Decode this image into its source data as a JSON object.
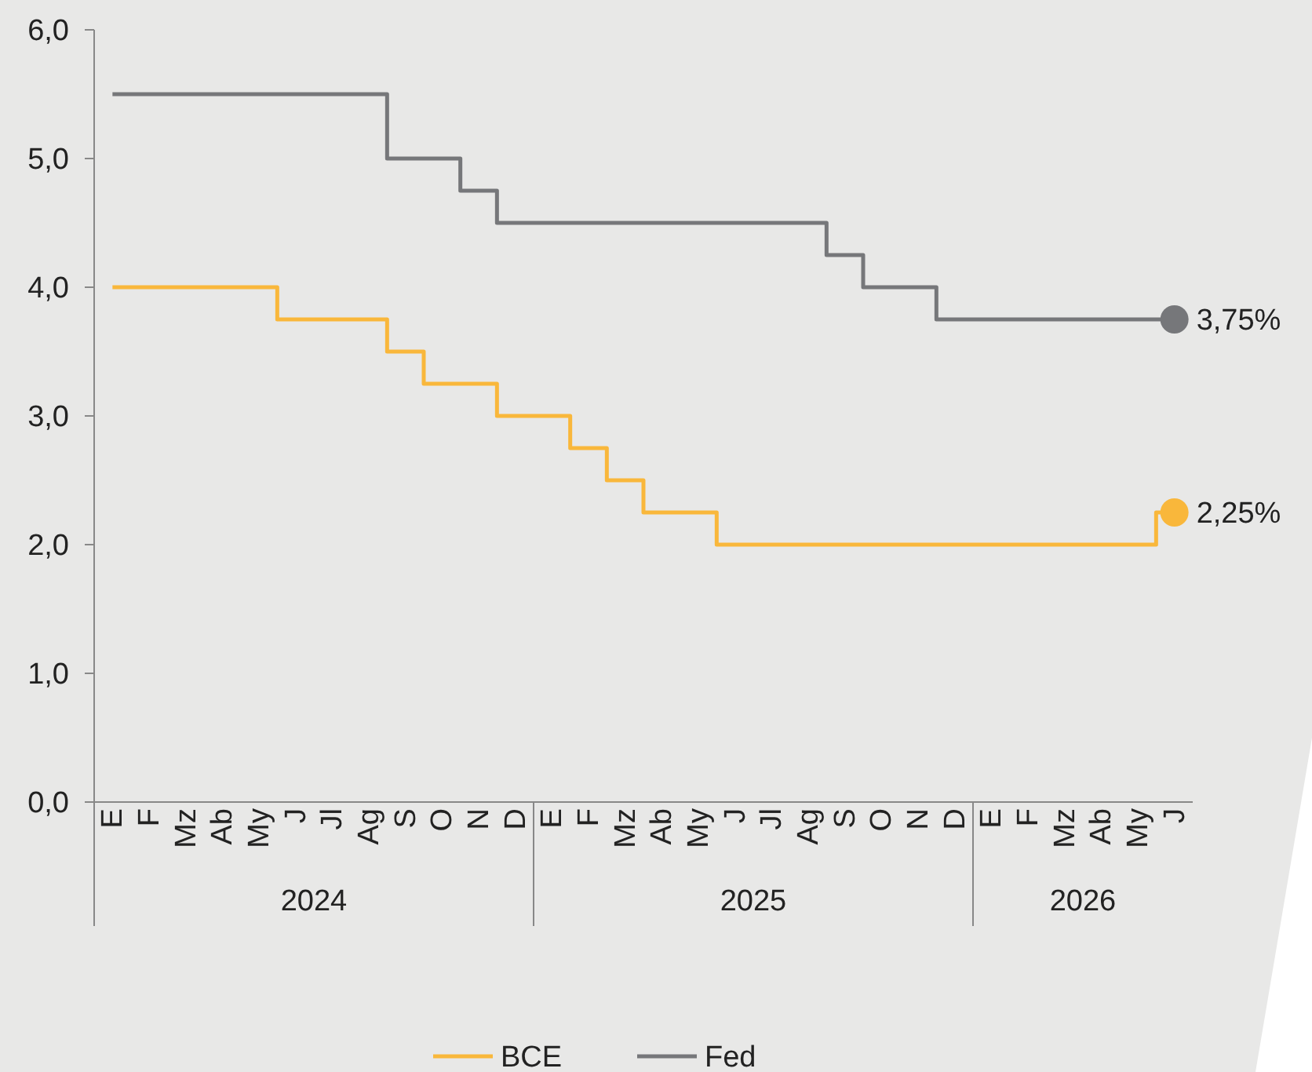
{
  "chart_data": {
    "type": "step",
    "categories": [
      "E",
      "F",
      "Mz",
      "Ab",
      "My",
      "J",
      "Jl",
      "Ag",
      "S",
      "O",
      "N",
      "D",
      "E",
      "F",
      "Mz",
      "Ab",
      "My",
      "J",
      "Jl",
      "Ag",
      "S",
      "O",
      "N",
      "D",
      "E",
      "F",
      "Mz",
      "Ab",
      "My",
      "J"
    ],
    "series": [
      {
        "name": "BCE",
        "color": "#f9b73b",
        "values": [
          4,
          4,
          4,
          4,
          4,
          3.75,
          3.75,
          3.75,
          3.5,
          3.25,
          3.25,
          3,
          3,
          2.75,
          2.5,
          2.25,
          2.25,
          2,
          2,
          2,
          2,
          2,
          2,
          2,
          2,
          2,
          2,
          2,
          2,
          2.25
        ],
        "value_labels": [
          null,
          null,
          null,
          null,
          null,
          null,
          null,
          null,
          null,
          null,
          null,
          null,
          null,
          null,
          null,
          null,
          null,
          null,
          null,
          null,
          null,
          null,
          null,
          null,
          null,
          null,
          null,
          null,
          null,
          "2,25%"
        ]
      },
      {
        "name": "Fed",
        "color": "#76777a",
        "values": [
          5.5,
          5.5,
          5.5,
          5.5,
          5.5,
          5.5,
          5.5,
          5.5,
          5,
          5,
          4.75,
          4.5,
          4.5,
          4.5,
          4.5,
          4.5,
          4.5,
          4.5,
          4.5,
          4.5,
          4.25,
          4,
          4,
          3.75,
          3.75,
          3.75,
          3.75,
          3.75,
          3.75,
          3.75
        ],
        "value_labels": [
          null,
          null,
          null,
          null,
          null,
          null,
          null,
          null,
          null,
          null,
          null,
          null,
          null,
          null,
          null,
          null,
          null,
          null,
          null,
          null,
          null,
          null,
          null,
          null,
          null,
          null,
          null,
          null,
          null,
          "3,75%"
        ]
      }
    ],
    "ylim": [
      0,
      6
    ],
    "yticks": [
      {
        "value": 0,
        "label": "0,0"
      },
      {
        "value": 1,
        "label": "1,0"
      },
      {
        "value": 2,
        "label": "2,0"
      },
      {
        "value": 3,
        "label": "3,0"
      },
      {
        "value": 4,
        "label": "4,0"
      },
      {
        "value": 5,
        "label": "5,0"
      },
      {
        "value": 6,
        "label": "6,0"
      }
    ],
    "annotations": [
      "2024",
      "2025",
      "2026"
    ],
    "grid": false,
    "legend": "bottom"
  }
}
